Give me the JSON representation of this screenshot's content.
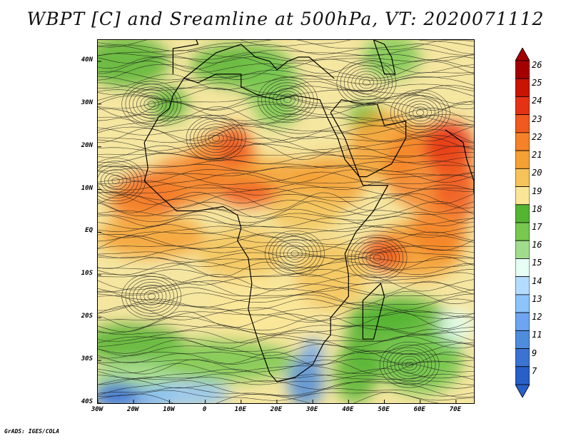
{
  "title": "WBPT [C] and Sreamline at 500hPa, VT: 2020071112",
  "footer": "GrADS: IGES/COLA",
  "map": {
    "lat_labels": [
      "40N",
      "30N",
      "20N",
      "10N",
      "EQ",
      "10S",
      "20S",
      "30S",
      "40S"
    ],
    "lon_labels": [
      "30W",
      "20W",
      "10W",
      "0",
      "10E",
      "20E",
      "30E",
      "40E",
      "50E",
      "60E",
      "70E"
    ],
    "lat_range": [
      -40,
      45
    ],
    "lon_range": [
      -30,
      75
    ]
  },
  "colorbar": {
    "labels": [
      "26",
      "25",
      "24",
      "23",
      "22",
      "21",
      "20",
      "19",
      "18",
      "17",
      "16",
      "15",
      "14",
      "13",
      "12",
      "11",
      "9",
      "7"
    ],
    "colors": [
      "#a50000",
      "#c81400",
      "#e63214",
      "#f05a1e",
      "#f58228",
      "#f5a032",
      "#f5c35a",
      "#fae696",
      "#55b432",
      "#78c850",
      "#a0dc8c",
      "#e6fff5",
      "#b4dcff",
      "#8cc3fa",
      "#6ea5f0",
      "#508cdc",
      "#3c73d2",
      "#2860c8"
    ]
  }
}
